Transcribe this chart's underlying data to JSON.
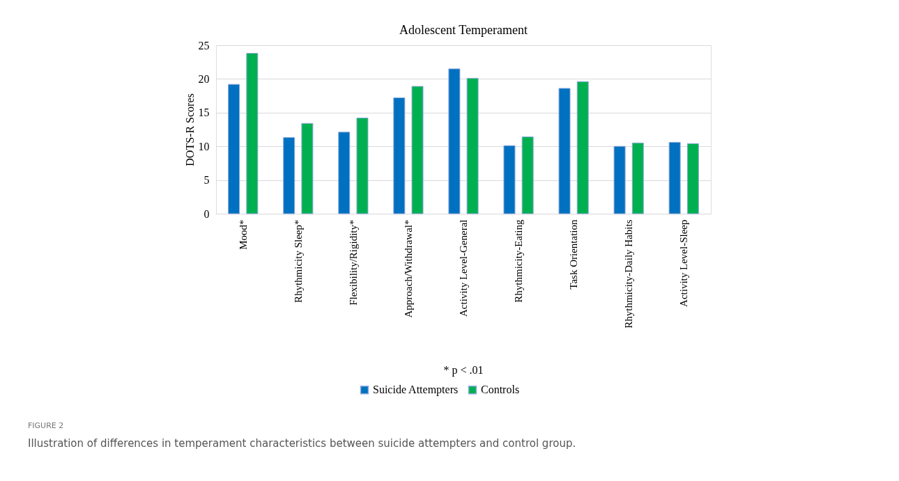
{
  "chart_data": {
    "type": "bar",
    "title": "Adolescent Temperament",
    "ylabel": "DOTS-R Scores",
    "categories": [
      "Mood*",
      "Rhythmicity Sleep*",
      "Flexibility/Rigidity*",
      "Approach/Withdrawal*",
      "Activity Level-General",
      "Rhythmicity-Eating",
      "Task Orientation",
      "Rhythmicity-Daily Habits",
      "Activity Level-Sleep"
    ],
    "series": [
      {
        "name": "Suicide Attempters",
        "color": "#0070c0",
        "values": [
          19.2,
          11.3,
          12.1,
          17.2,
          21.5,
          10.1,
          18.6,
          10.0,
          10.6
        ]
      },
      {
        "name": "Controls",
        "color": "#00b050",
        "values": [
          23.8,
          13.4,
          14.2,
          18.9,
          20.1,
          11.4,
          19.6,
          10.5,
          10.4
        ]
      }
    ],
    "ylim": [
      0,
      25
    ],
    "yticks": [
      0,
      5,
      10,
      15,
      20,
      25
    ],
    "grid": "y",
    "legend": "bottom",
    "annotations": [
      "* p < .01",
      "FIGURE 2",
      "Illustration of differences in temperament characteristics between suicide attempters and control group."
    ]
  }
}
